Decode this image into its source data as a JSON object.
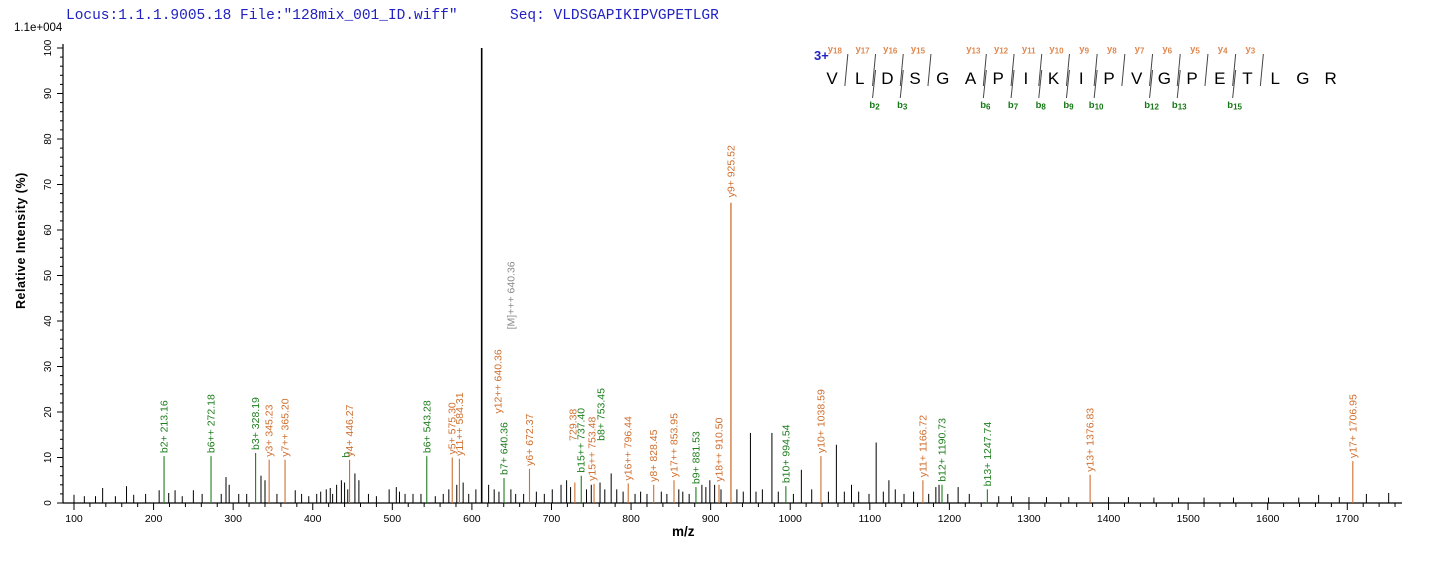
{
  "header": {
    "locus_file": "Locus:1.1.1.9005.18 File:\"128mix_001_ID.wiff\"",
    "seq_line": "Seq: VLDSGAPIKIPVGPETLGR"
  },
  "y_axis": {
    "label": "Relative Intensity (%)",
    "max_label": "1.1e+004",
    "major_ticks": [
      0,
      10,
      20,
      30,
      40,
      50,
      60,
      70,
      80,
      90,
      100
    ],
    "minor_step": 2
  },
  "x_axis": {
    "label": "m/z",
    "major_ticks": [
      100,
      200,
      300,
      400,
      500,
      600,
      700,
      800,
      900,
      1000,
      1100,
      1200,
      1300,
      1400,
      1500,
      1600,
      1700
    ],
    "minor_step": 20,
    "min": 100,
    "max": 1760
  },
  "colors": {
    "header_blue": "#2222c2",
    "b_ion_green": "#1e7e1e",
    "y_ion_orange": "#cf6f2f",
    "seq_y_orange": "#e08850",
    "seq_b_green": "#157815",
    "precursor_gray": "#8c8c8c",
    "peak_black": "#000000"
  },
  "sequence": {
    "charge": "3+",
    "residues": [
      "V",
      "L",
      "D",
      "S",
      "G",
      "A",
      "P",
      "I",
      "K",
      "I",
      "P",
      "V",
      "G",
      "P",
      "E",
      "T",
      "L",
      "G",
      "R"
    ],
    "y_ions": [
      {
        "label": "y18",
        "after": 1
      },
      {
        "label": "y17",
        "after": 2
      },
      {
        "label": "y16",
        "after": 3
      },
      {
        "label": "y15",
        "after": 4
      },
      {
        "label": "y13",
        "after": 6
      },
      {
        "label": "y12",
        "after": 7
      },
      {
        "label": "y11",
        "after": 8
      },
      {
        "label": "y10",
        "after": 9
      },
      {
        "label": "y9",
        "after": 10
      },
      {
        "label": "y8",
        "after": 11
      },
      {
        "label": "y7",
        "after": 12
      },
      {
        "label": "y6",
        "after": 13
      },
      {
        "label": "y5",
        "after": 14
      },
      {
        "label": "y4",
        "after": 15
      },
      {
        "label": "y3",
        "after": 16
      }
    ],
    "b_ions": [
      {
        "label": "b2",
        "after": 2
      },
      {
        "label": "b3",
        "after": 3
      },
      {
        "label": "b6",
        "after": 6
      },
      {
        "label": "b7",
        "after": 7
      },
      {
        "label": "b8",
        "after": 8
      },
      {
        "label": "b9",
        "after": 9
      },
      {
        "label": "b10",
        "after": 10
      },
      {
        "label": "b12",
        "after": 12
      },
      {
        "label": "b13",
        "after": 13
      },
      {
        "label": "b15",
        "after": 15
      }
    ]
  },
  "chart_data": {
    "type": "bar",
    "variant": "centroided-ms2-mass-spectrum",
    "title": "",
    "xlabel": "m/z",
    "ylabel": "Relative Intensity (%)",
    "xlim": [
      100,
      1760
    ],
    "ylim": [
      0,
      100
    ],
    "grid": false,
    "legend": "none",
    "labeled_peaks": [
      {
        "ion": "b2+",
        "mz": "213.16",
        "series": "b",
        "line_pct": 10.3,
        "label_bottom_pct": 10.3
      },
      {
        "ion": "b6++",
        "mz": "272.18",
        "series": "b",
        "line_pct": 10.3,
        "label_bottom_pct": 10.3
      },
      {
        "ion": "b3+",
        "mz": "328.19",
        "series": "b",
        "line_pct": 11,
        "label_bottom_pct": 11
      },
      {
        "ion": "y3+",
        "mz": "345.23",
        "series": "y",
        "line_pct": 9.5,
        "label_bottom_pct": 9.5
      },
      {
        "ion": "y7++",
        "mz": "365.20",
        "series": "y",
        "line_pct": 9.5,
        "label_bottom_pct": 9.5
      },
      {
        "ion": "b",
        "mz": "",
        "mz_val": 442.8,
        "series": "b",
        "line_pct": 0,
        "label_bottom_pct": 9.3,
        "dx": -1,
        "note": "overlapped label fragment"
      },
      {
        "ion": "y4+",
        "mz": "446.27",
        "series": "y",
        "line_pct": 9.5,
        "label_bottom_pct": 9.5
      },
      {
        "ion": "b6+",
        "mz": "543.28",
        "series": "b",
        "line_pct": 10.3,
        "label_bottom_pct": 10.3
      },
      {
        "ion": "y5+",
        "mz": "575.30",
        "series": "y",
        "line_pct": 10,
        "label_bottom_pct": 10
      },
      {
        "ion": "y11++",
        "mz": "584.31",
        "series": "y",
        "line_pct": 9.7,
        "label_bottom_pct": 9.7
      },
      {
        "ion": "b7+",
        "mz": "640.36",
        "series": "b",
        "line_pct": 5.5,
        "label_bottom_pct": 5.5
      },
      {
        "ion": "y12++",
        "mz": "640.36",
        "series": "y",
        "line_pct": 0,
        "label_bottom_pct": 19,
        "dx": -6
      },
      {
        "ion": "[M]+++",
        "mz": "640.36",
        "series": "precursor",
        "line_pct": 0,
        "label_bottom_pct": 37.5,
        "dx": 7
      },
      {
        "ion": "y6+",
        "mz": "672.37",
        "series": "y",
        "line_pct": 7.5,
        "label_bottom_pct": 7.5
      },
      {
        "ion": "",
        "mz": "729.38",
        "series": "y",
        "line_pct": 4.5,
        "label_bottom_pct": 13,
        "dx": -2,
        "note": "ion name obscured by overlap"
      },
      {
        "ion": "b15++",
        "mz": "737.40",
        "series": "b",
        "line_pct": 6,
        "label_bottom_pct": 6
      },
      {
        "ion": "y15++",
        "mz": "753.48",
        "series": "y",
        "line_pct": 4.2,
        "label_bottom_pct": 4.2,
        "dx": -2
      },
      {
        "ion": "b8+",
        "mz": "753.45",
        "series": "b",
        "line_pct": 0,
        "label_bottom_pct": 13,
        "dx": 7
      },
      {
        "ion": "y16++",
        "mz": "796.44",
        "series": "y",
        "line_pct": 4.3,
        "label_bottom_pct": 4.3
      },
      {
        "ion": "y8+",
        "mz": "828.45",
        "series": "y",
        "line_pct": 4,
        "label_bottom_pct": 4
      },
      {
        "ion": "y17++",
        "mz": "853.95",
        "series": "y",
        "line_pct": 5,
        "label_bottom_pct": 5
      },
      {
        "ion": "b9+",
        "mz": "881.53",
        "series": "b",
        "line_pct": 3.5,
        "label_bottom_pct": 3.5
      },
      {
        "ion": "y18++",
        "mz": "910.50",
        "series": "y",
        "line_pct": 4,
        "label_bottom_pct": 4
      },
      {
        "ion": "y9+",
        "mz": "925.52",
        "series": "y",
        "line_pct": 66,
        "label_bottom_pct": 66.5
      },
      {
        "ion": "b10+",
        "mz": "994.54",
        "series": "b",
        "line_pct": 3.7,
        "label_bottom_pct": 3.7
      },
      {
        "ion": "y10+",
        "mz": "1038.59",
        "series": "y",
        "line_pct": 10.3,
        "label_bottom_pct": 10.3
      },
      {
        "ion": "y11+",
        "mz": "1166.72",
        "series": "y",
        "line_pct": 5,
        "label_bottom_pct": 5
      },
      {
        "ion": "b12+",
        "mz": "1190.73",
        "series": "b",
        "line_pct": 4,
        "label_bottom_pct": 4
      },
      {
        "ion": "b13+",
        "mz": "1247.74",
        "series": "b",
        "line_pct": 3,
        "label_bottom_pct": 3
      },
      {
        "ion": "y13+",
        "mz": "1376.83",
        "series": "y",
        "line_pct": 6.2,
        "label_bottom_pct": 6.2
      },
      {
        "ion": "y17+",
        "mz": "1706.95",
        "series": "y",
        "line_pct": 9.2,
        "label_bottom_pct": 9.2
      }
    ],
    "unlabeled_peaks": [
      [
        100,
        1.8
      ],
      [
        113,
        1.5
      ],
      [
        127,
        1.5
      ],
      [
        136,
        3.3
      ],
      [
        152,
        1.5
      ],
      [
        166,
        3.7
      ],
      [
        175,
        1.8
      ],
      [
        190,
        2
      ],
      [
        207,
        2.8
      ],
      [
        219,
        2.2
      ],
      [
        227,
        2.8
      ],
      [
        236,
        1.5
      ],
      [
        250,
        2.8
      ],
      [
        261,
        2
      ],
      [
        285,
        2
      ],
      [
        291,
        5.7
      ],
      [
        295,
        4
      ],
      [
        307,
        2
      ],
      [
        317,
        2
      ],
      [
        335,
        6
      ],
      [
        340,
        5
      ],
      [
        355,
        2
      ],
      [
        378,
        2.8
      ],
      [
        386,
        2
      ],
      [
        395,
        1.5
      ],
      [
        405,
        2
      ],
      [
        410,
        2.5
      ],
      [
        417,
        3
      ],
      [
        422,
        3.3
      ],
      [
        425,
        2
      ],
      [
        430,
        4
      ],
      [
        436,
        5
      ],
      [
        440,
        4.5
      ],
      [
        444,
        3
      ],
      [
        453,
        6.5
      ],
      [
        458,
        5
      ],
      [
        470,
        2
      ],
      [
        480,
        1.5
      ],
      [
        496,
        3
      ],
      [
        505,
        3.5
      ],
      [
        509,
        2.5
      ],
      [
        516,
        2
      ],
      [
        526,
        2
      ],
      [
        536,
        2
      ],
      [
        554,
        1.5
      ],
      [
        564,
        2
      ],
      [
        571,
        3
      ],
      [
        581,
        4
      ],
      [
        589,
        4.5
      ],
      [
        596,
        2
      ],
      [
        605,
        3
      ],
      [
        612.3,
        100
      ],
      [
        621,
        4
      ],
      [
        628,
        3
      ],
      [
        634,
        2.5
      ],
      [
        649,
        3
      ],
      [
        655,
        2
      ],
      [
        665,
        2
      ],
      [
        681,
        2.5
      ],
      [
        691,
        2
      ],
      [
        701,
        3
      ],
      [
        712,
        4
      ],
      [
        719,
        5
      ],
      [
        724,
        3.5
      ],
      [
        744,
        3
      ],
      [
        750,
        4
      ],
      [
        761,
        4.5
      ],
      [
        767,
        3
      ],
      [
        775,
        6.5
      ],
      [
        782,
        3
      ],
      [
        790,
        2.5
      ],
      [
        805,
        2
      ],
      [
        812,
        2.5
      ],
      [
        820,
        2
      ],
      [
        838,
        2.5
      ],
      [
        845,
        2
      ],
      [
        860,
        3
      ],
      [
        865,
        2.5
      ],
      [
        873,
        2
      ],
      [
        889,
        4
      ],
      [
        894,
        3.5
      ],
      [
        899,
        5
      ],
      [
        905,
        4
      ],
      [
        913,
        3
      ],
      [
        933,
        3
      ],
      [
        941,
        2.5
      ],
      [
        950,
        15.4
      ],
      [
        957,
        2.5
      ],
      [
        965,
        3
      ],
      [
        977,
        15.4
      ],
      [
        985,
        2.5
      ],
      [
        1004,
        2
      ],
      [
        1014,
        7.3
      ],
      [
        1027,
        3
      ],
      [
        1048,
        2.5
      ],
      [
        1058,
        12.8
      ],
      [
        1068,
        2.5
      ],
      [
        1077,
        4
      ],
      [
        1086,
        2.5
      ],
      [
        1099,
        2
      ],
      [
        1108,
        13.3
      ],
      [
        1117,
        2.5
      ],
      [
        1124,
        5
      ],
      [
        1132,
        3
      ],
      [
        1143,
        2
      ],
      [
        1155,
        2.5
      ],
      [
        1174,
        2
      ],
      [
        1183,
        3.5
      ],
      [
        1187,
        4
      ],
      [
        1198,
        2
      ],
      [
        1211,
        3.5
      ],
      [
        1225,
        2
      ],
      [
        1262,
        1.5
      ],
      [
        1278,
        1.5
      ],
      [
        1300,
        1.3
      ],
      [
        1322,
        1.3
      ],
      [
        1350,
        1.3
      ],
      [
        1400,
        1.3
      ],
      [
        1425,
        1.3
      ],
      [
        1457,
        1.2
      ],
      [
        1488,
        1.2
      ],
      [
        1520,
        1.2
      ],
      [
        1557,
        1.2
      ],
      [
        1601,
        1.2
      ],
      [
        1639,
        1.2
      ],
      [
        1664,
        1.8
      ],
      [
        1690,
        1.3
      ],
      [
        1724,
        2
      ],
      [
        1752,
        2.2
      ]
    ]
  }
}
